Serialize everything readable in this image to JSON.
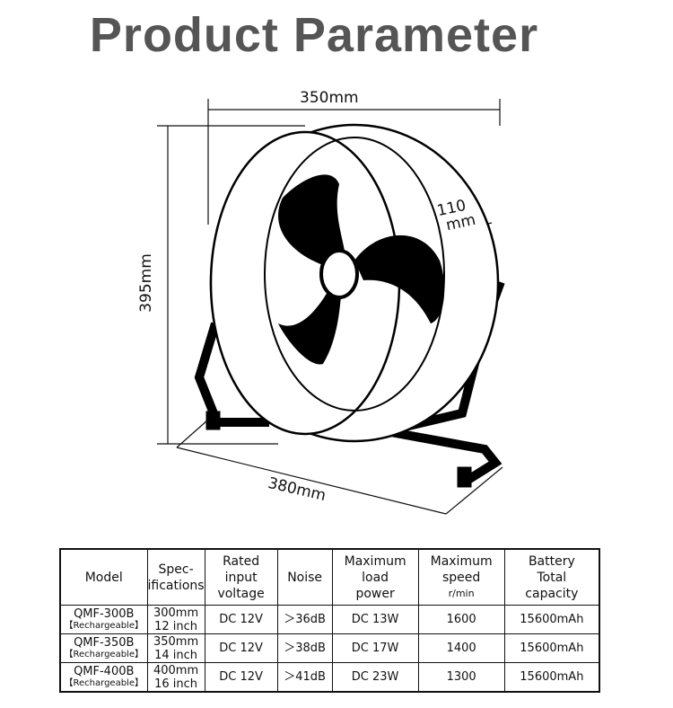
{
  "title": "Product Parameter",
  "dimensions": {
    "width": "350mm",
    "height": "395mm",
    "depth_top": "110",
    "depth_bottom": "mm",
    "base": "380mm"
  },
  "table": {
    "headers": [
      [
        "Model"
      ],
      [
        "Spec-",
        "ifications"
      ],
      [
        "Rated",
        "input",
        "voltage"
      ],
      [
        "Noise"
      ],
      [
        "Maximum",
        "load",
        "power"
      ],
      [
        "Maximum",
        "speed",
        "r/min"
      ],
      [
        "Battery",
        "Total",
        "capacity"
      ]
    ],
    "rows": [
      {
        "model": "QMF-300B",
        "tag": "【Rechargeable】",
        "spec_mm": "300mm",
        "spec_in": "12 inch",
        "voltage": "DC 12V",
        "noise": "＞36dB",
        "power": "DC 13W",
        "speed": "1600",
        "capacity": "15600mAh"
      },
      {
        "model": "QMF-350B",
        "tag": "【Rechargeable】",
        "spec_mm": "350mm",
        "spec_in": "14 inch",
        "voltage": "DC 12V",
        "noise": "＞38dB",
        "power": "DC 17W",
        "speed": "1400",
        "capacity": "15600mAh"
      },
      {
        "model": "QMF-400B",
        "tag": "【Rechargeable】",
        "spec_mm": "400mm",
        "spec_in": "16 inch",
        "voltage": "DC 12V",
        "noise": "＞41dB",
        "power": "DC 23W",
        "speed": "1300",
        "capacity": "15600mAh"
      }
    ]
  }
}
